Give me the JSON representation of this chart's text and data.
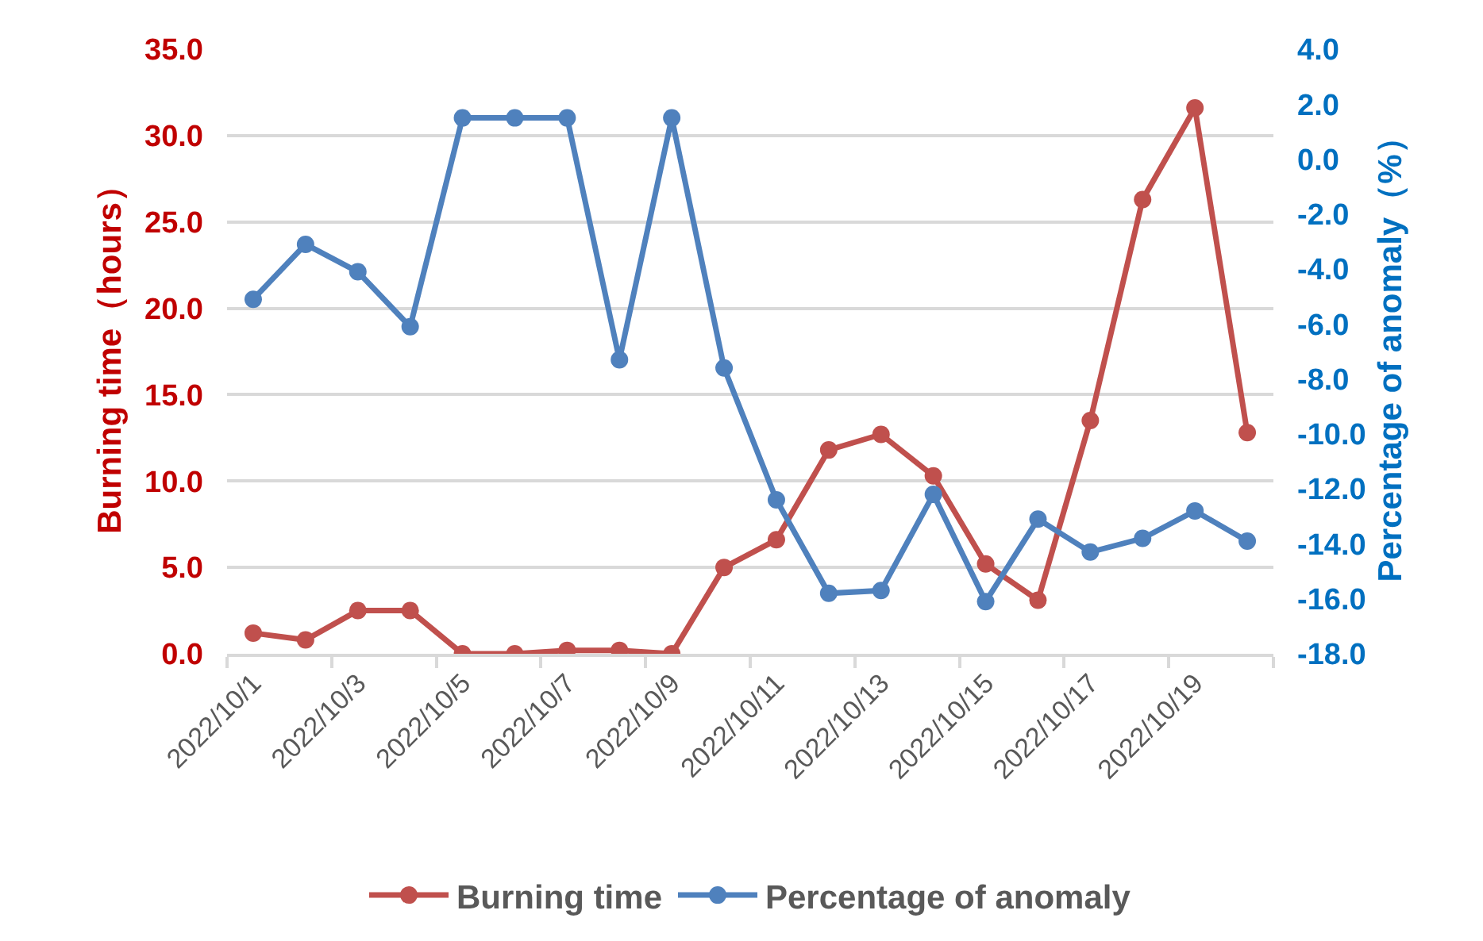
{
  "chart_data": {
    "type": "line",
    "categories": [
      "2022/10/1",
      null,
      "2022/10/3",
      null,
      "2022/10/5",
      null,
      "2022/10/7",
      null,
      "2022/10/9",
      null,
      "2022/10/11",
      null,
      "2022/10/13",
      null,
      "2022/10/15",
      null,
      "2022/10/17",
      null,
      "2022/10/19",
      null
    ],
    "ylabel": "Burning time（hours）",
    "y2label": "Percentage of anomaly（%）",
    "ylim": [
      0,
      35
    ],
    "yticks": [
      {
        "value": 0,
        "label": "0.0"
      },
      {
        "value": 5,
        "label": "5.0"
      },
      {
        "value": 10,
        "label": "10.0"
      },
      {
        "value": 15,
        "label": "15.0"
      },
      {
        "value": 20,
        "label": "20.0"
      },
      {
        "value": 25,
        "label": "25.0"
      },
      {
        "value": 30,
        "label": "30.0"
      },
      {
        "value": 35,
        "label": "35.0"
      }
    ],
    "y2lim": [
      -18,
      4
    ],
    "y2ticks": [
      {
        "value": -18,
        "label": "-18.0"
      },
      {
        "value": -16,
        "label": "-16.0"
      },
      {
        "value": -14,
        "label": "-14.0"
      },
      {
        "value": -12,
        "label": "-12.0"
      },
      {
        "value": -10,
        "label": "-10.0"
      },
      {
        "value": -8,
        "label": "-8.0"
      },
      {
        "value": -6,
        "label": "-6.0"
      },
      {
        "value": -4,
        "label": "-4.0"
      },
      {
        "value": -2,
        "label": "-2.0"
      },
      {
        "value": 0,
        "label": "0.0"
      },
      {
        "value": 2,
        "label": "2.0"
      },
      {
        "value": 4,
        "label": "4.0"
      }
    ],
    "series": [
      {
        "name": "Burning time",
        "color": "#c0504d",
        "values": [
          1.2,
          0.8,
          2.5,
          2.5,
          0,
          0,
          0.2,
          0.2,
          0,
          5.0,
          6.6,
          11.8,
          12.7,
          10.3,
          5.2,
          3.1,
          13.5,
          26.3,
          31.6,
          12.8
        ]
      },
      {
        "name": "Percentage of anomaly",
        "color": "#4f81bd",
        "axis": "y2",
        "values": [
          -5.1,
          -3.1,
          -4.1,
          -6.1,
          1.5,
          1.5,
          1.5,
          -7.3,
          1.5,
          -7.6,
          -12.4,
          -15.8,
          -15.7,
          -12.2,
          -16.1,
          -13.1,
          -14.3,
          -13.8,
          -12.8,
          -13.9
        ]
      }
    ],
    "grid": "y",
    "legend": "bottom",
    "marker": "circle",
    "line_style": "solid"
  }
}
